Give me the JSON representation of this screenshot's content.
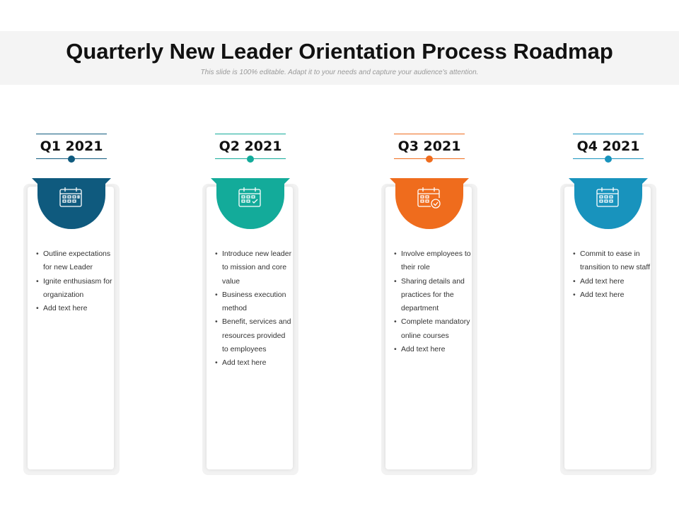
{
  "title": "Quarterly New Leader Orientation Process Roadmap",
  "subtitle": "This slide is 100% editable. Adapt it to your needs and capture your audience's attention.",
  "quarters": [
    {
      "label": "Q1 2021",
      "color": "#0f5a7e",
      "icon": "calendar-icon",
      "bullets": [
        "Outline expectations for new Leader",
        "Ignite enthusiasm for organization",
        "Add text here"
      ]
    },
    {
      "label": "Q2 2021",
      "color": "#13ab9a",
      "icon": "calendar-icon",
      "bullets": [
        "Introduce new leader to mission and core value",
        "Business execution method",
        "Benefit, services and resources provided to employees",
        "Add text here"
      ]
    },
    {
      "label": "Q3 2021",
      "color": "#ef6c1d",
      "icon": "calendar-check-icon",
      "bullets": [
        "Involve employees to their role",
        "Sharing details and practices for the department",
        "Complete mandatory online courses",
        "Add text here"
      ]
    },
    {
      "label": "Q4 2021",
      "color": "#1893bd",
      "icon": "calendar-icon",
      "bullets": [
        "Commit  to ease in transition to new staff",
        "Add text here",
        "Add text here"
      ]
    }
  ]
}
